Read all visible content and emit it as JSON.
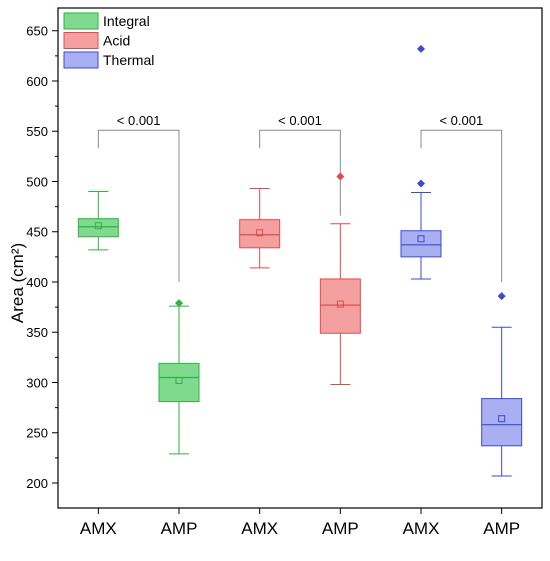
{
  "chart_data": {
    "type": "box",
    "ylabel": "Area (cm²)",
    "ylim": [
      190,
      665
    ],
    "yticks": [
      200,
      250,
      300,
      350,
      400,
      450,
      500,
      550,
      600,
      650
    ],
    "categories": [
      "AMX",
      "AMP",
      "AMX",
      "AMP",
      "AMX",
      "AMP"
    ],
    "legend": {
      "placement": "top-left",
      "entries": [
        {
          "name": "Integral",
          "fill": "#7fd98f",
          "stroke": "#2eb33e"
        },
        {
          "name": "Acid",
          "fill": "#f5a0a0",
          "stroke": "#e24a4a"
        },
        {
          "name": "Thermal",
          "fill": "#a9aff0",
          "stroke": "#3a4bd6"
        }
      ]
    },
    "boxes": [
      {
        "category": "AMX",
        "group": "Integral",
        "whisker_low": 432,
        "q1": 445,
        "median": 455,
        "q3": 463,
        "whisker_high": 490,
        "mean": 456,
        "outliers": []
      },
      {
        "category": "AMP",
        "group": "Integral",
        "whisker_low": 229,
        "q1": 281,
        "median": 305,
        "q3": 319,
        "whisker_high": 376,
        "mean": 302,
        "outliers": [
          379
        ]
      },
      {
        "category": "AMX",
        "group": "Acid",
        "whisker_low": 414,
        "q1": 434,
        "median": 447,
        "q3": 462,
        "whisker_high": 493,
        "mean": 449,
        "outliers": []
      },
      {
        "category": "AMP",
        "group": "Acid",
        "whisker_low": 298,
        "q1": 349,
        "median": 377,
        "q3": 403,
        "whisker_high": 458,
        "mean": 378,
        "outliers": [
          505
        ]
      },
      {
        "category": "AMX",
        "group": "Thermal",
        "whisker_low": 403,
        "q1": 425,
        "median": 437,
        "q3": 451,
        "whisker_high": 489,
        "mean": 443,
        "outliers": [
          498,
          632
        ]
      },
      {
        "category": "AMP",
        "group": "Thermal",
        "whisker_low": 207,
        "q1": 237,
        "median": 258,
        "q3": 284,
        "whisker_high": 355,
        "mean": 264,
        "outliers": [
          386
        ]
      }
    ],
    "annotations": [
      {
        "text": "< 0.001",
        "from_box": 0,
        "to_box": 1,
        "bar_value": 551,
        "left_end": 533,
        "right_end": 400
      },
      {
        "text": "< 0.001",
        "from_box": 2,
        "to_box": 3,
        "bar_value": 551,
        "left_end": 533,
        "right_end": 466
      },
      {
        "text": "< 0.001",
        "from_box": 4,
        "to_box": 5,
        "bar_value": 551,
        "left_end": 533,
        "right_end": 400
      }
    ]
  }
}
